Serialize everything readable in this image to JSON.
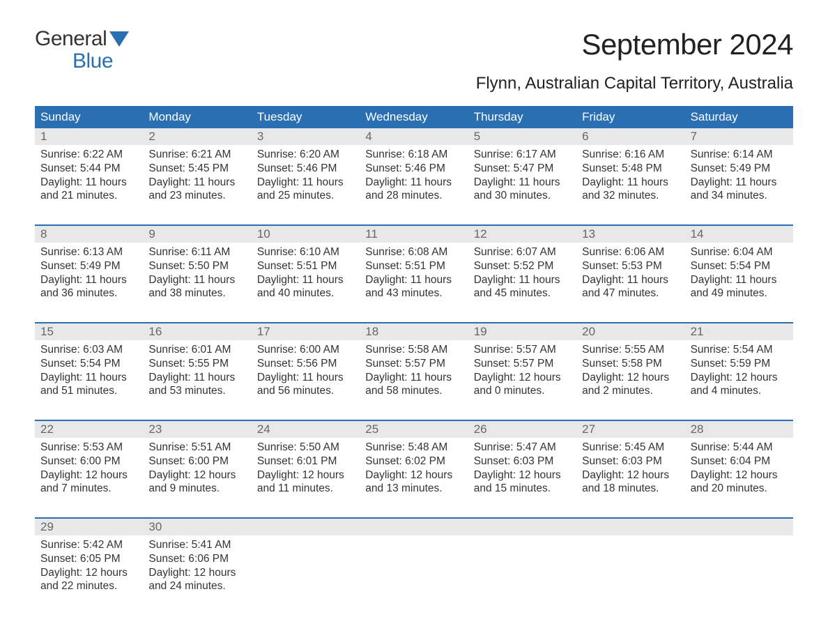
{
  "logo": {
    "word1": "General",
    "word2": "Blue"
  },
  "title": "September 2024",
  "location": "Flynn, Australian Capital Territory, Australia",
  "calendar": {
    "header_bg": "#2b6fb3",
    "header_fg": "#ffffff",
    "daynum_bg": "#e8e8e8",
    "daynum_fg": "#666666",
    "rule_color": "#2b6fb3",
    "text_color": "#333333",
    "cell_fontsize": 15.5,
    "daynames": [
      "Sunday",
      "Monday",
      "Tuesday",
      "Wednesday",
      "Thursday",
      "Friday",
      "Saturday"
    ],
    "weeks": [
      [
        {
          "n": "1",
          "sunrise": "6:22 AM",
          "sunset": "5:44 PM",
          "dl1": "Daylight: 11 hours",
          "dl2": "and 21 minutes."
        },
        {
          "n": "2",
          "sunrise": "6:21 AM",
          "sunset": "5:45 PM",
          "dl1": "Daylight: 11 hours",
          "dl2": "and 23 minutes."
        },
        {
          "n": "3",
          "sunrise": "6:20 AM",
          "sunset": "5:46 PM",
          "dl1": "Daylight: 11 hours",
          "dl2": "and 25 minutes."
        },
        {
          "n": "4",
          "sunrise": "6:18 AM",
          "sunset": "5:46 PM",
          "dl1": "Daylight: 11 hours",
          "dl2": "and 28 minutes."
        },
        {
          "n": "5",
          "sunrise": "6:17 AM",
          "sunset": "5:47 PM",
          "dl1": "Daylight: 11 hours",
          "dl2": "and 30 minutes."
        },
        {
          "n": "6",
          "sunrise": "6:16 AM",
          "sunset": "5:48 PM",
          "dl1": "Daylight: 11 hours",
          "dl2": "and 32 minutes."
        },
        {
          "n": "7",
          "sunrise": "6:14 AM",
          "sunset": "5:49 PM",
          "dl1": "Daylight: 11 hours",
          "dl2": "and 34 minutes."
        }
      ],
      [
        {
          "n": "8",
          "sunrise": "6:13 AM",
          "sunset": "5:49 PM",
          "dl1": "Daylight: 11 hours",
          "dl2": "and 36 minutes."
        },
        {
          "n": "9",
          "sunrise": "6:11 AM",
          "sunset": "5:50 PM",
          "dl1": "Daylight: 11 hours",
          "dl2": "and 38 minutes."
        },
        {
          "n": "10",
          "sunrise": "6:10 AM",
          "sunset": "5:51 PM",
          "dl1": "Daylight: 11 hours",
          "dl2": "and 40 minutes."
        },
        {
          "n": "11",
          "sunrise": "6:08 AM",
          "sunset": "5:51 PM",
          "dl1": "Daylight: 11 hours",
          "dl2": "and 43 minutes."
        },
        {
          "n": "12",
          "sunrise": "6:07 AM",
          "sunset": "5:52 PM",
          "dl1": "Daylight: 11 hours",
          "dl2": "and 45 minutes."
        },
        {
          "n": "13",
          "sunrise": "6:06 AM",
          "sunset": "5:53 PM",
          "dl1": "Daylight: 11 hours",
          "dl2": "and 47 minutes."
        },
        {
          "n": "14",
          "sunrise": "6:04 AM",
          "sunset": "5:54 PM",
          "dl1": "Daylight: 11 hours",
          "dl2": "and 49 minutes."
        }
      ],
      [
        {
          "n": "15",
          "sunrise": "6:03 AM",
          "sunset": "5:54 PM",
          "dl1": "Daylight: 11 hours",
          "dl2": "and 51 minutes."
        },
        {
          "n": "16",
          "sunrise": "6:01 AM",
          "sunset": "5:55 PM",
          "dl1": "Daylight: 11 hours",
          "dl2": "and 53 minutes."
        },
        {
          "n": "17",
          "sunrise": "6:00 AM",
          "sunset": "5:56 PM",
          "dl1": "Daylight: 11 hours",
          "dl2": "and 56 minutes."
        },
        {
          "n": "18",
          "sunrise": "5:58 AM",
          "sunset": "5:57 PM",
          "dl1": "Daylight: 11 hours",
          "dl2": "and 58 minutes."
        },
        {
          "n": "19",
          "sunrise": "5:57 AM",
          "sunset": "5:57 PM",
          "dl1": "Daylight: 12 hours",
          "dl2": "and 0 minutes."
        },
        {
          "n": "20",
          "sunrise": "5:55 AM",
          "sunset": "5:58 PM",
          "dl1": "Daylight: 12 hours",
          "dl2": "and 2 minutes."
        },
        {
          "n": "21",
          "sunrise": "5:54 AM",
          "sunset": "5:59 PM",
          "dl1": "Daylight: 12 hours",
          "dl2": "and 4 minutes."
        }
      ],
      [
        {
          "n": "22",
          "sunrise": "5:53 AM",
          "sunset": "6:00 PM",
          "dl1": "Daylight: 12 hours",
          "dl2": "and 7 minutes."
        },
        {
          "n": "23",
          "sunrise": "5:51 AM",
          "sunset": "6:00 PM",
          "dl1": "Daylight: 12 hours",
          "dl2": "and 9 minutes."
        },
        {
          "n": "24",
          "sunrise": "5:50 AM",
          "sunset": "6:01 PM",
          "dl1": "Daylight: 12 hours",
          "dl2": "and 11 minutes."
        },
        {
          "n": "25",
          "sunrise": "5:48 AM",
          "sunset": "6:02 PM",
          "dl1": "Daylight: 12 hours",
          "dl2": "and 13 minutes."
        },
        {
          "n": "26",
          "sunrise": "5:47 AM",
          "sunset": "6:03 PM",
          "dl1": "Daylight: 12 hours",
          "dl2": "and 15 minutes."
        },
        {
          "n": "27",
          "sunrise": "5:45 AM",
          "sunset": "6:03 PM",
          "dl1": "Daylight: 12 hours",
          "dl2": "and 18 minutes."
        },
        {
          "n": "28",
          "sunrise": "5:44 AM",
          "sunset": "6:04 PM",
          "dl1": "Daylight: 12 hours",
          "dl2": "and 20 minutes."
        }
      ],
      [
        {
          "n": "29",
          "sunrise": "5:42 AM",
          "sunset": "6:05 PM",
          "dl1": "Daylight: 12 hours",
          "dl2": "and 22 minutes."
        },
        {
          "n": "30",
          "sunrise": "5:41 AM",
          "sunset": "6:06 PM",
          "dl1": "Daylight: 12 hours",
          "dl2": "and 24 minutes."
        },
        null,
        null,
        null,
        null,
        null
      ]
    ]
  },
  "labels": {
    "sunrise_prefix": "Sunrise: ",
    "sunset_prefix": "Sunset: "
  }
}
